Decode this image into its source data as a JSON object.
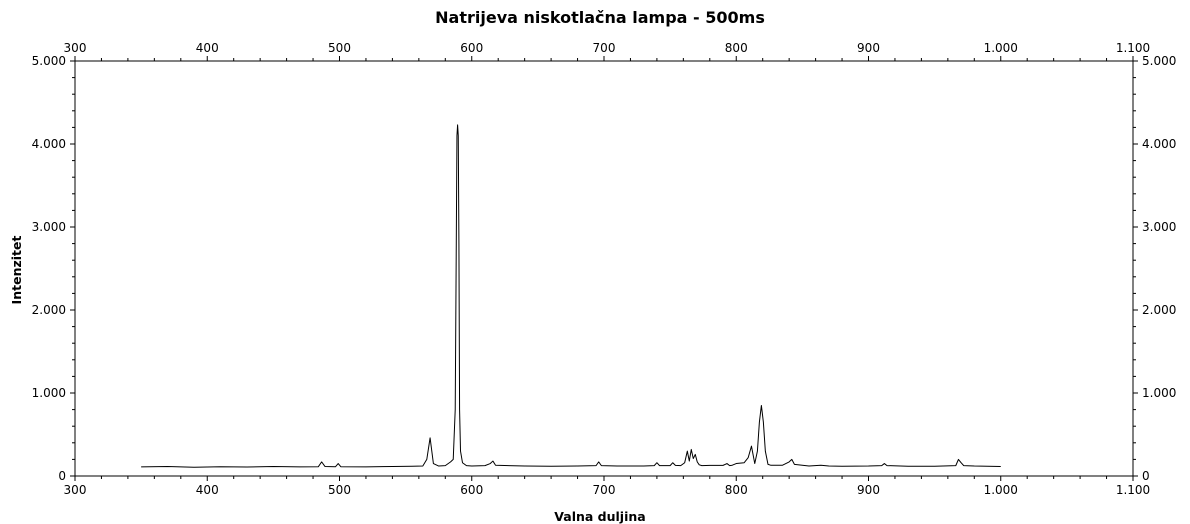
{
  "chart_data": {
    "type": "line",
    "title": "Natrijeva niskotlačna lampa - 500ms",
    "xlabel": "Valna duljina",
    "ylabel": "Intenzitet",
    "xlim": [
      300,
      1100
    ],
    "ylim": [
      0,
      5000
    ],
    "x_ticks": [
      300,
      400,
      500,
      600,
      700,
      800,
      900,
      1000,
      1100
    ],
    "x_tick_labels": [
      "300",
      "400",
      "500",
      "600",
      "700",
      "800",
      "900",
      "1.000",
      "1.100"
    ],
    "y_ticks": [
      0,
      1000,
      2000,
      3000,
      4000,
      5000
    ],
    "y_tick_labels": [
      "0",
      "1.000",
      "2.000",
      "3.000",
      "4.000",
      "5.000"
    ],
    "top_axis_labels": true,
    "right_axis_labels": true,
    "grid": false,
    "line_color": "#000000",
    "series": [
      {
        "x": [
          350,
          370,
          390,
          410,
          430,
          450,
          470,
          484,
          486.5,
          489,
          497,
          499,
          501,
          520,
          540,
          555,
          563,
          566,
          568.5,
          571,
          575,
          580,
          584,
          586,
          587.5,
          588.3,
          588.8,
          589.3,
          589.8,
          590.3,
          590.8,
          591.5,
          593,
          596,
          600,
          610,
          614,
          616,
          618,
          640,
          660,
          680,
          694,
          696,
          698,
          710,
          730,
          738,
          740,
          742,
          750,
          752,
          754,
          758,
          761,
          763,
          764.5,
          766,
          767.5,
          769,
          770.5,
          772,
          774,
          780,
          790,
          793,
          795,
          797,
          800,
          806,
          809,
          811.5,
          814,
          816,
          817.5,
          819,
          820.5,
          822,
          824,
          826,
          835,
          840,
          842,
          844,
          855,
          864,
          870,
          880,
          900,
          910,
          912,
          914,
          930,
          950,
          966,
          968,
          970,
          972,
          980,
          990,
          1000
        ],
        "y": [
          110,
          115,
          105,
          112,
          108,
          115,
          110,
          112,
          170,
          115,
          112,
          150,
          112,
          110,
          115,
          118,
          120,
          200,
          460,
          150,
          120,
          125,
          170,
          200,
          800,
          2800,
          4100,
          4230,
          4100,
          2800,
          800,
          300,
          160,
          125,
          120,
          125,
          150,
          180,
          130,
          120,
          118,
          120,
          125,
          170,
          125,
          120,
          120,
          125,
          160,
          125,
          125,
          160,
          128,
          125,
          160,
          300,
          180,
          320,
          210,
          260,
          170,
          135,
          125,
          128,
          128,
          150,
          125,
          130,
          150,
          160,
          220,
          360,
          150,
          300,
          650,
          850,
          650,
          300,
          140,
          130,
          130,
          170,
          200,
          140,
          120,
          130,
          120,
          118,
          120,
          125,
          150,
          125,
          118,
          118,
          125,
          200,
          160,
          125,
          120,
          118,
          115
        ]
      }
    ]
  }
}
